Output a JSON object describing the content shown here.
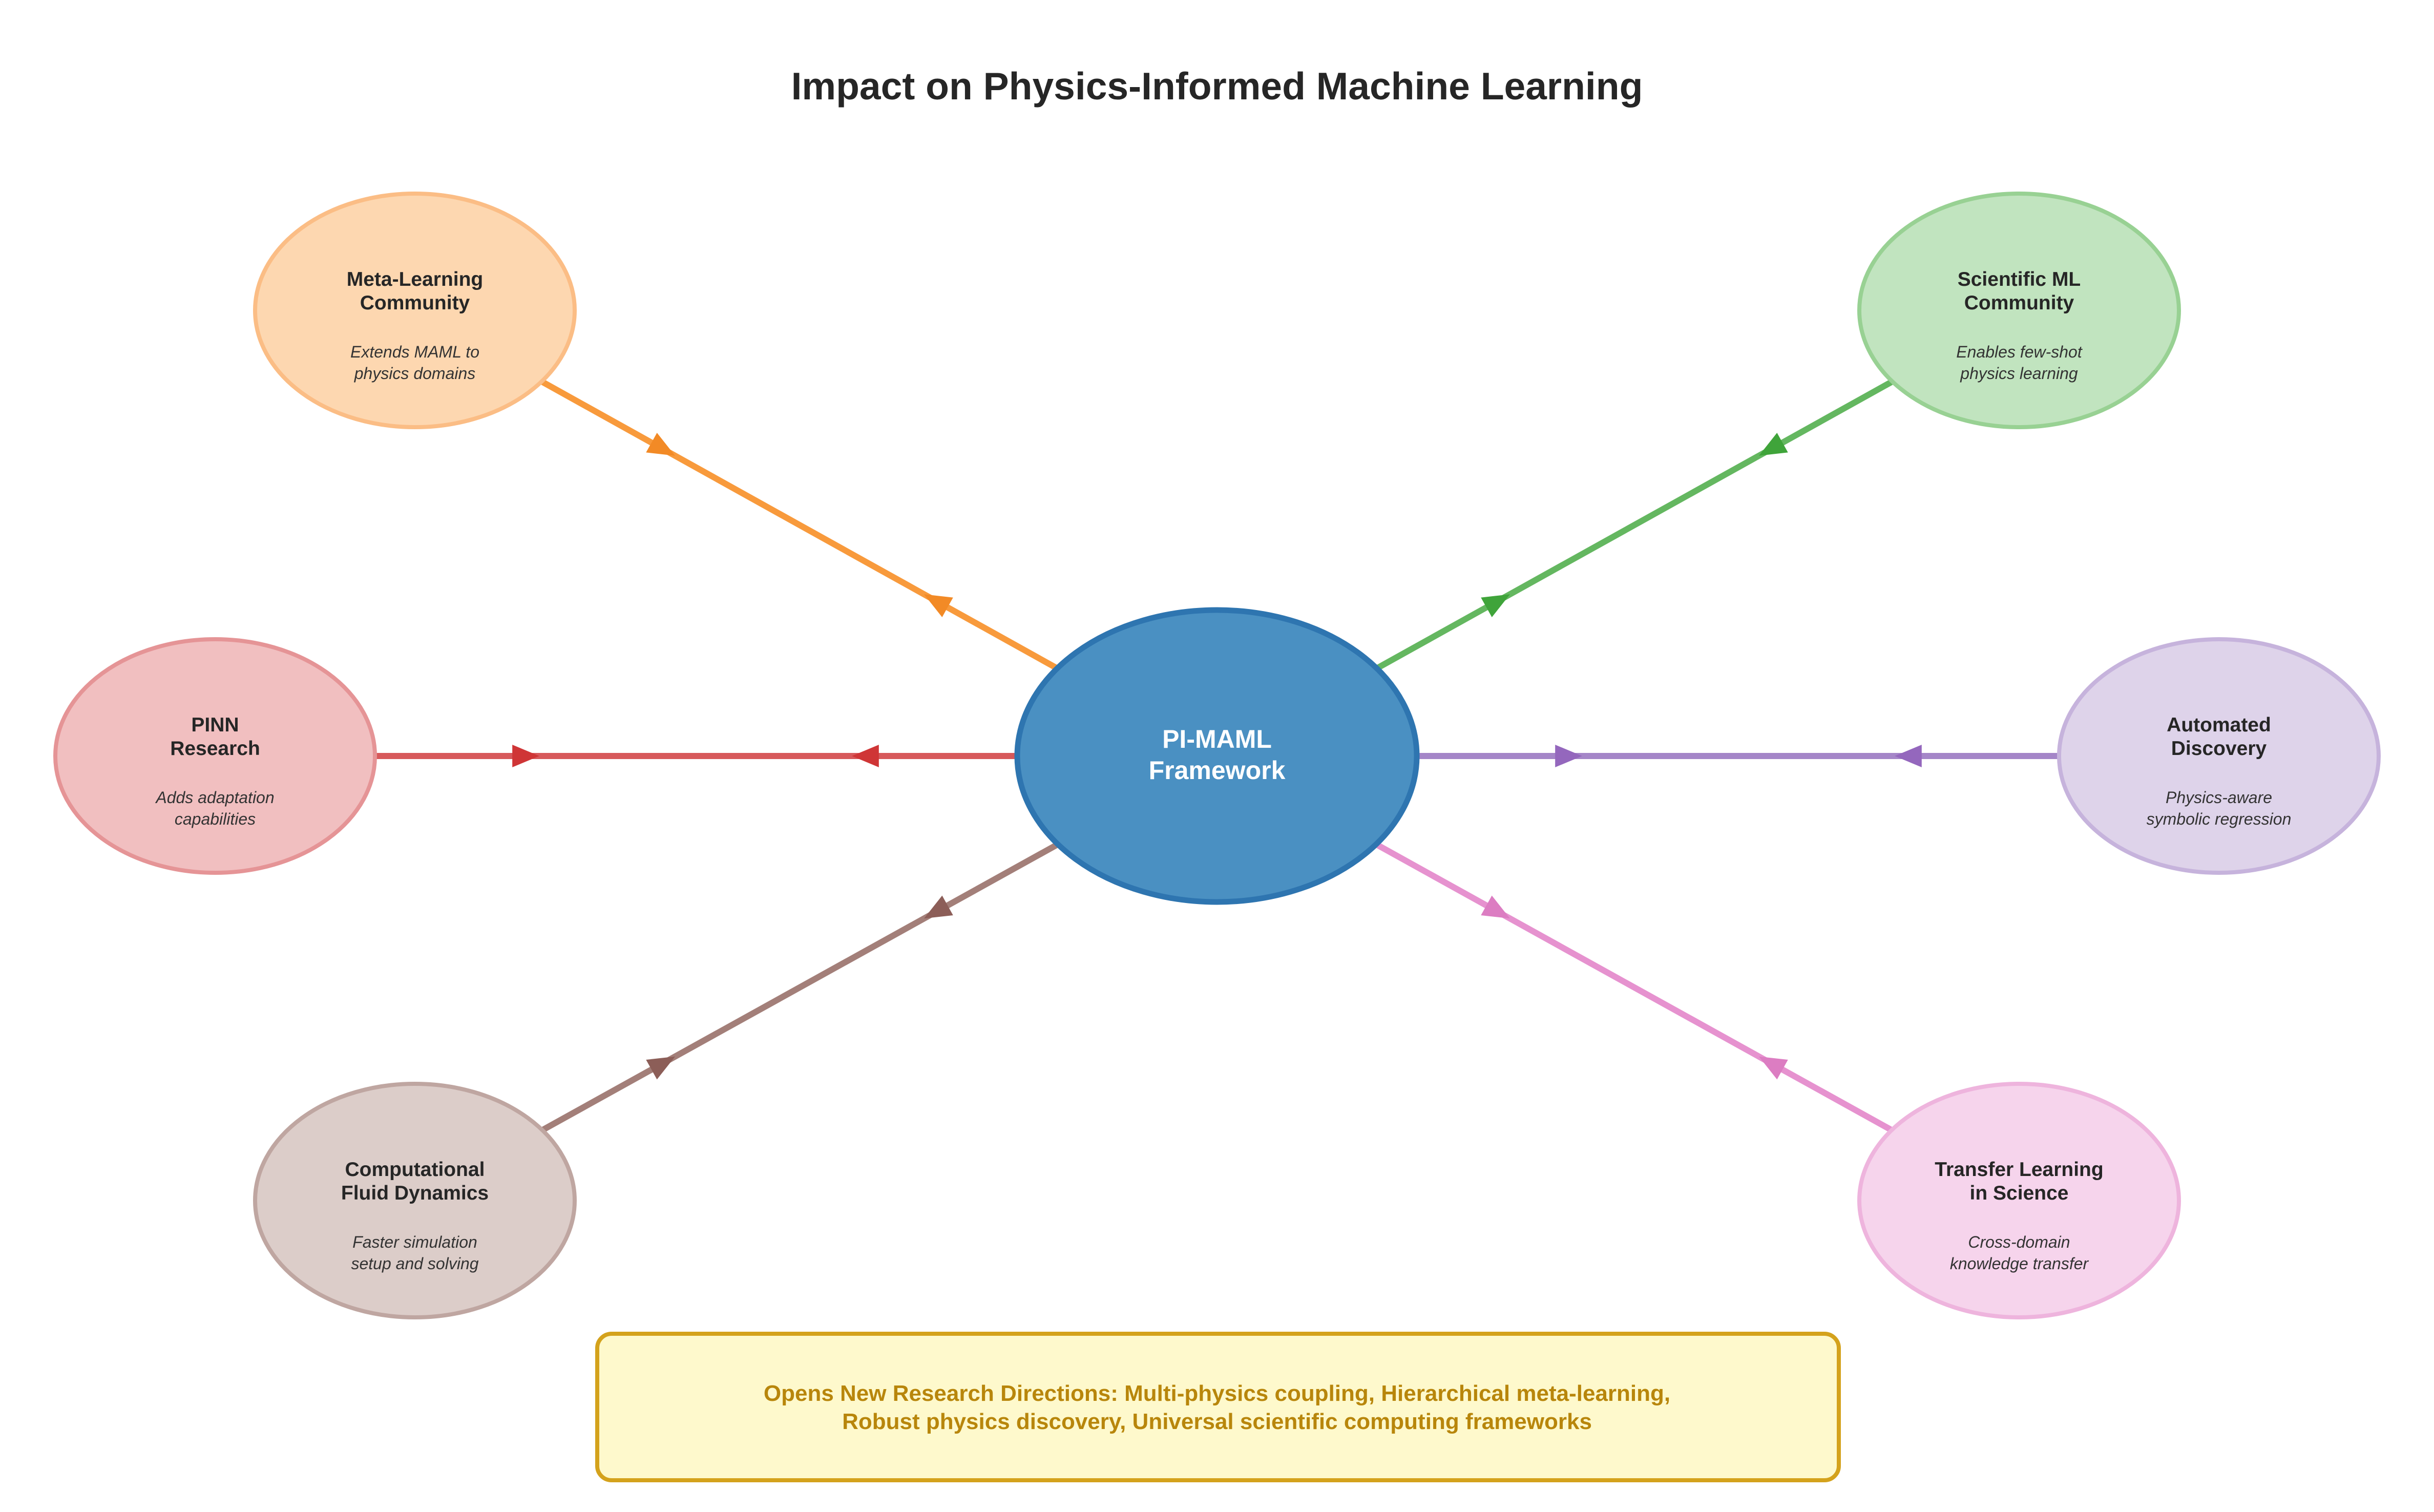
{
  "title": "Impact on Physics-Informed Machine Learning",
  "center": {
    "lines": [
      "PI-MAML",
      "Framework"
    ],
    "fill": "#4a90c2",
    "stroke": "#2e75b0"
  },
  "nodes": [
    {
      "id": "meta-learning",
      "title": [
        "Meta-Learning",
        "Community"
      ],
      "desc": [
        "Extends MAML to",
        "physics domains"
      ],
      "fill": "#fdd7b0",
      "stroke": "#fbbd85",
      "edge": "#f89a3c",
      "arrow": "#f28a26"
    },
    {
      "id": "scientific-ml",
      "title": [
        "Scientific ML",
        "Community"
      ],
      "desc": [
        "Enables few-shot",
        "physics learning"
      ],
      "fill": "#c1e4bf",
      "stroke": "#98d193",
      "edge": "#64b760",
      "arrow": "#3fa43a"
    },
    {
      "id": "pinn",
      "title": [
        "PINN",
        "Research"
      ],
      "desc": [
        "Adds adaptation",
        "capabilities"
      ],
      "fill": "#f1bfc0",
      "stroke": "#e59496",
      "edge": "#d7595b",
      "arrow": "#cf3536"
    },
    {
      "id": "automated-discovery",
      "title": [
        "Automated",
        "Discovery"
      ],
      "desc": [
        "Physics-aware",
        "symbolic regression"
      ],
      "fill": "#ded3ea",
      "stroke": "#c6b3dc",
      "edge": "#a586c8",
      "arrow": "#9467bd"
    },
    {
      "id": "cfd",
      "title": [
        "Computational",
        "Fluid Dynamics"
      ],
      "desc": [
        "Faster simulation",
        "setup and solving"
      ],
      "fill": "#dccdc9",
      "stroke": "#bfa6a1",
      "edge": "#a37f79",
      "arrow": "#8c5e58"
    },
    {
      "id": "transfer-learning",
      "title": [
        "Transfer Learning",
        "in Science"
      ],
      "desc": [
        "Cross-domain",
        "knowledge transfer"
      ],
      "fill": "#f6d4ec",
      "stroke": "#eeb4dd",
      "edge": "#e692cf",
      "arrow": "#dc7dc2"
    }
  ],
  "footer": {
    "lines": [
      "Opens New Research Directions: Multi-physics coupling, Hierarchical meta-learning,",
      "Robust physics discovery, Universal scientific computing frameworks"
    ],
    "fill": "#fef9cc",
    "stroke": "#d4a21c"
  }
}
